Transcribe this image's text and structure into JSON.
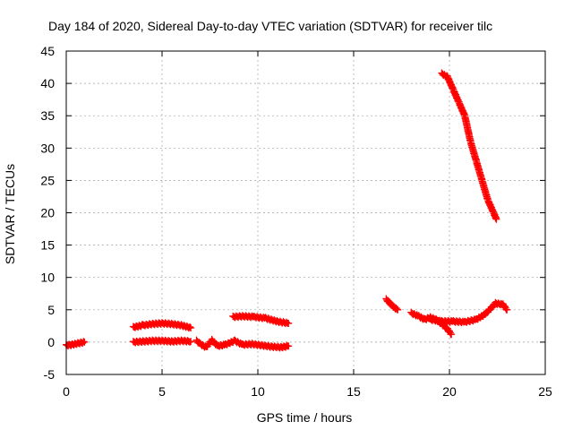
{
  "chart_data": {
    "type": "scatter",
    "title": "Day 184 of 2020, Sidereal Day-to-day VTEC variation (SDTVAR) for receiver tilc",
    "xlabel": "GPS time / hours",
    "ylabel": "SDTVAR / TECUs",
    "xlim": [
      0,
      25
    ],
    "ylim": [
      -5,
      45
    ],
    "xticks": [
      "0",
      "5",
      "10",
      "15",
      "20",
      "25"
    ],
    "yticks": [
      "-5",
      "0",
      "5",
      "10",
      "15",
      "20",
      "25",
      "30",
      "35",
      "40",
      "45"
    ],
    "grid": true,
    "marker": "plus",
    "color": "#ff0000",
    "series": [
      {
        "x": [
          0.0,
          0.3,
          0.6,
          0.95
        ],
        "y": [
          -0.5,
          -0.4,
          -0.2,
          0.0
        ]
      },
      {
        "x": [
          3.5,
          4.0,
          4.5,
          5.0,
          5.5,
          6.0,
          6.5
        ],
        "y": [
          2.3,
          2.6,
          2.8,
          2.9,
          2.8,
          2.6,
          2.2
        ]
      },
      {
        "x": [
          3.5,
          4.0,
          4.5,
          5.0,
          5.5,
          6.0,
          6.5
        ],
        "y": [
          0.0,
          0.1,
          0.2,
          0.2,
          0.1,
          0.2,
          0.1
        ]
      },
      {
        "x": [
          6.8,
          7.0,
          7.3,
          7.6,
          7.9,
          8.3,
          8.8,
          9.2,
          9.7,
          10.2,
          10.7,
          11.2,
          11.6
        ],
        "y": [
          0.2,
          -0.3,
          -0.8,
          0.3,
          -0.6,
          -0.4,
          0.2,
          -0.4,
          -0.3,
          -0.5,
          -0.7,
          -0.8,
          -0.6
        ]
      },
      {
        "x": [
          8.7,
          9.2,
          9.8,
          10.4,
          11.0,
          11.6
        ],
        "y": [
          3.9,
          4.0,
          3.9,
          3.7,
          3.2,
          2.9
        ]
      },
      {
        "x": [
          16.7,
          16.9,
          17.1,
          17.3
        ],
        "y": [
          6.6,
          6.0,
          5.4,
          5.0
        ]
      },
      {
        "x": [
          18.0,
          18.4,
          18.7,
          19.0,
          19.3,
          19.6,
          19.9,
          20.1
        ],
        "y": [
          4.5,
          4.0,
          3.5,
          3.8,
          3.5,
          2.8,
          2.0,
          1.2
        ]
      },
      {
        "x": [
          19.0,
          19.6,
          20.2,
          20.8,
          21.4,
          21.8,
          22.1,
          22.4,
          22.8,
          23.0
        ],
        "y": [
          3.5,
          3.2,
          3.2,
          3.1,
          3.5,
          4.2,
          5.0,
          6.0,
          5.8,
          5.0
        ]
      },
      {
        "x": [
          19.6,
          19.9,
          20.2,
          20.5,
          20.8,
          21.1,
          21.4,
          21.7,
          22.0,
          22.3,
          22.45
        ],
        "y": [
          41.5,
          41.0,
          39.0,
          37.0,
          35.0,
          31.0,
          28.0,
          25.0,
          22.0,
          20.0,
          19.0
        ]
      }
    ]
  }
}
